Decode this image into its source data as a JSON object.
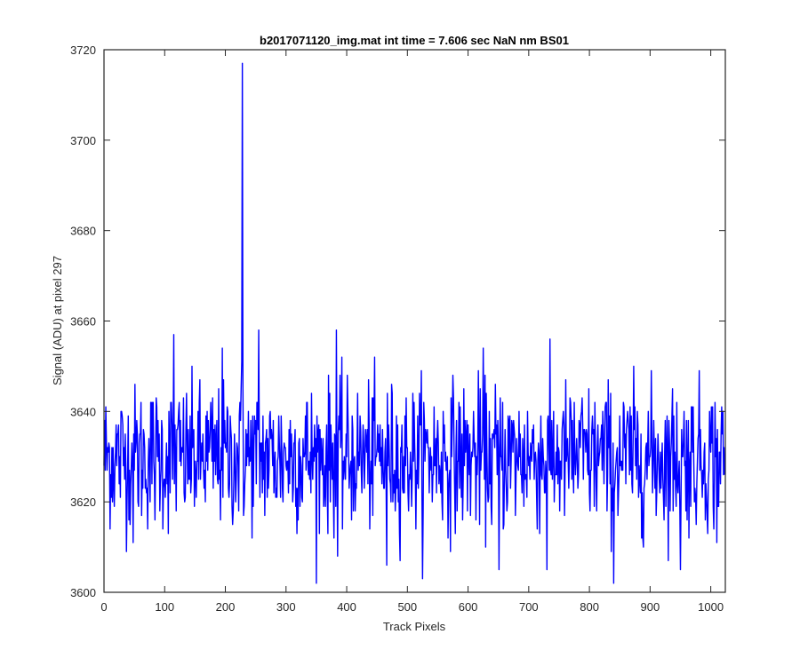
{
  "chart_data": {
    "type": "line",
    "title": "b2017071120_img.mat int time = 7.606 sec  NaN nm BS01",
    "xlabel": "Track Pixels",
    "ylabel": "Signal (ADU) at pixel 297",
    "xlim": [
      0,
      1024
    ],
    "ylim": [
      3600,
      3720
    ],
    "xticks": [
      0,
      100,
      200,
      300,
      400,
      500,
      600,
      700,
      800,
      900,
      1000
    ],
    "yticks": [
      3600,
      3620,
      3640,
      3660,
      3680,
      3700,
      3720
    ],
    "grid": false,
    "line_color": "#0000ff",
    "noise_model": {
      "n_points": 1024,
      "mean": 3630,
      "std": 8,
      "min": 3602,
      "max": 3658
    },
    "features": [
      {
        "x": 228,
        "y": 3717
      },
      {
        "x": 227,
        "y": 3651
      },
      {
        "x": 229,
        "y": 3645
      },
      {
        "x": 255,
        "y": 3658
      },
      {
        "x": 383,
        "y": 3658
      },
      {
        "x": 115,
        "y": 3657
      },
      {
        "x": 625,
        "y": 3654
      },
      {
        "x": 195,
        "y": 3654
      },
      {
        "x": 840,
        "y": 3602
      },
      {
        "x": 651,
        "y": 3605
      },
      {
        "x": 466,
        "y": 3606
      },
      {
        "x": 730,
        "y": 3605
      },
      {
        "x": 950,
        "y": 3605
      },
      {
        "x": 385,
        "y": 3608
      },
      {
        "x": 48,
        "y": 3611
      },
      {
        "x": 1010,
        "y": 3611
      }
    ]
  }
}
